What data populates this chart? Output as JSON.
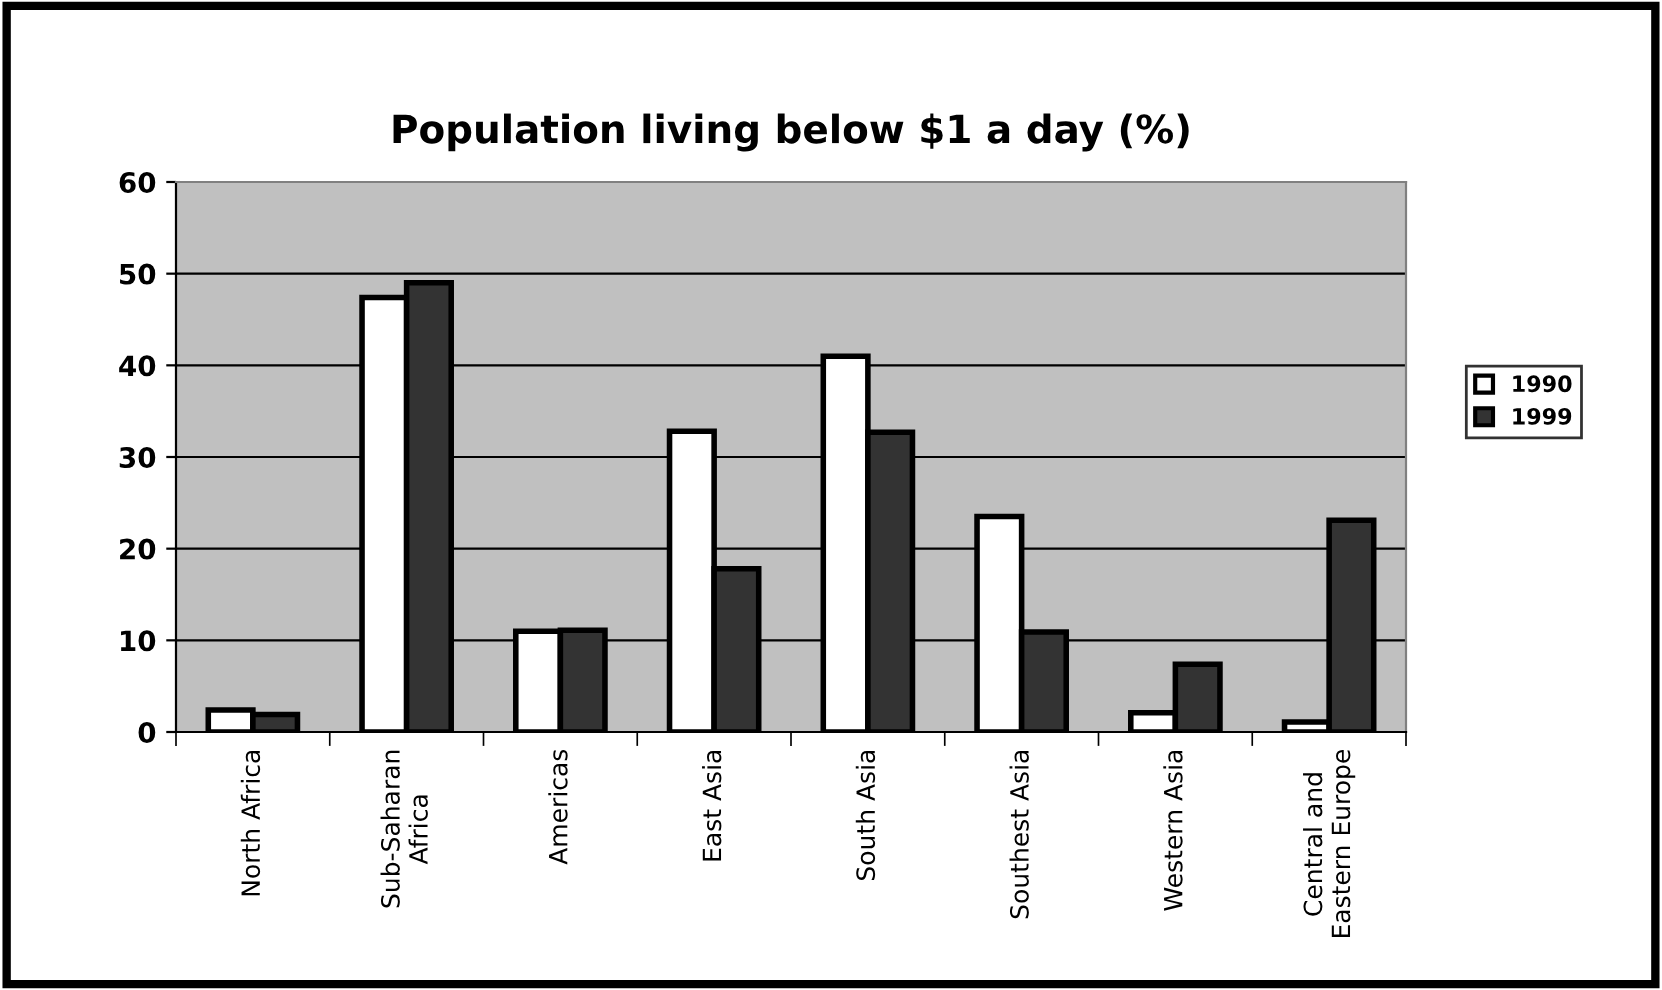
{
  "chart_data": {
    "type": "bar",
    "title": "Population living below $1 a day (%)",
    "categories": [
      "North Africa",
      "Sub-Saharan\nAfrica",
      "Americas",
      "East Asia",
      "South Asia",
      "Southest Asia",
      "Western Asia",
      "Central and\nEastern Europe"
    ],
    "series": [
      {
        "name": "1990",
        "color": "#ffffff",
        "values": [
          2.4,
          47.4,
          11.0,
          32.8,
          41.0,
          23.5,
          2.1,
          1.1
        ]
      },
      {
        "name": "1999",
        "color": "#333333",
        "values": [
          1.9,
          49.0,
          11.1,
          17.8,
          32.7,
          10.9,
          7.4,
          23.1
        ]
      }
    ],
    "ylim": [
      0,
      60
    ],
    "yticks": [
      0,
      10,
      20,
      30,
      40,
      50,
      60
    ],
    "grid": "y",
    "legend": "right"
  }
}
